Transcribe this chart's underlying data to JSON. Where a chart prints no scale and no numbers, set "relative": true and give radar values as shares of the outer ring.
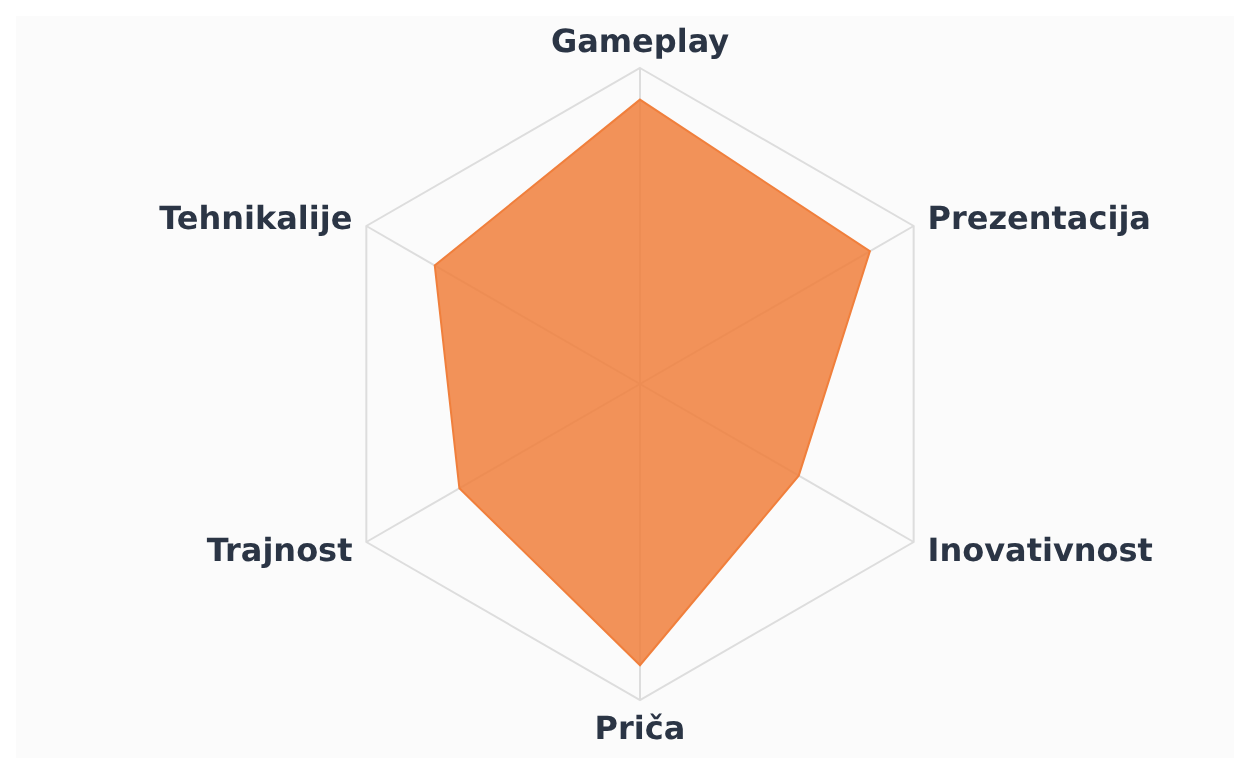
{
  "chart_data": {
    "type": "radar",
    "relative": true,
    "grid": true,
    "categories": [
      "Gameplay",
      "Prezentacija",
      "Inovativnost",
      "Priča",
      "Trajnost",
      "Tehnikalije"
    ],
    "series": [
      {
        "color": "#f07f3c",
        "values": [
          0.9,
          0.84,
          0.58,
          0.89,
          0.66,
          0.75
        ]
      }
    ]
  }
}
